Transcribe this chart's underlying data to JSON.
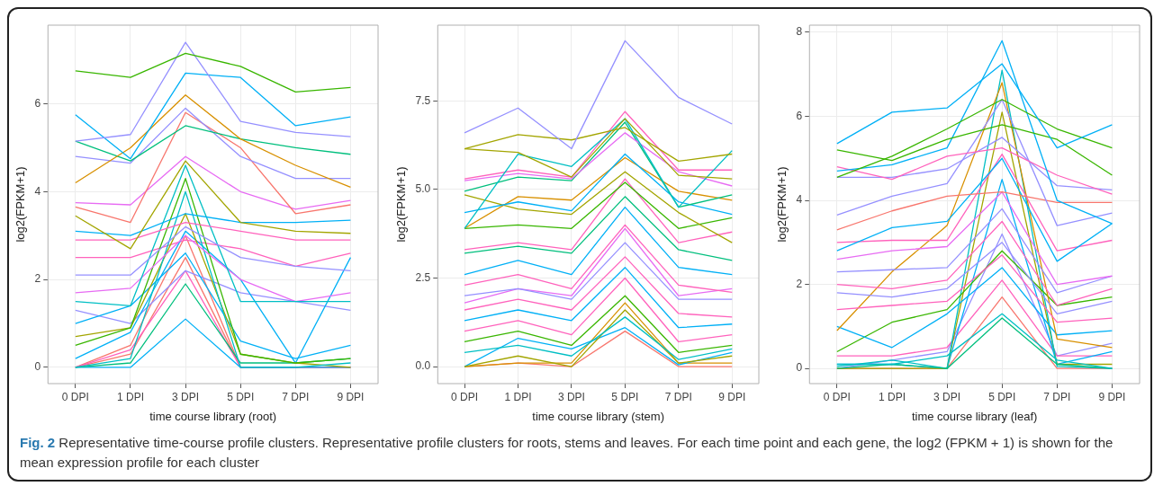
{
  "chart_data": [
    {
      "type": "line",
      "xlabel": "time course library (root)",
      "ylabel": "log2(FPKM+1)",
      "categories": [
        "0 DPI",
        "1 DPI",
        "3 DPI",
        "5 DPI",
        "7 DPI",
        "9 DPI"
      ],
      "ylim": [
        -0.37,
        7.79
      ],
      "yticks": [
        0,
        2,
        4,
        6
      ],
      "grid": true,
      "legend": false,
      "marker": "none",
      "line_style": "solid",
      "annotations": [
        "Fig. 2",
        "Representative time-course profile clusters. Representative profile clusters for roots, stems and leaves. For each time point and each gene, the log2 (FPKM + 1) is shown for the mean expression profile for each cluster"
      ],
      "series": [
        {
          "color": "#39B600",
          "values": [
            6.75,
            6.6,
            7.15,
            6.85,
            6.27,
            6.37
          ]
        },
        {
          "color": "#9590FF",
          "values": [
            5.15,
            5.3,
            7.4,
            5.6,
            5.35,
            5.25
          ]
        },
        {
          "color": "#00B0F6",
          "values": [
            5.75,
            4.75,
            6.7,
            6.6,
            5.5,
            5.7
          ]
        },
        {
          "color": "#D89000",
          "values": [
            4.2,
            5.0,
            6.2,
            5.2,
            4.6,
            4.1
          ]
        },
        {
          "color": "#00BF7D",
          "values": [
            5.15,
            4.7,
            5.5,
            5.2,
            5.0,
            4.85
          ]
        },
        {
          "color": "#9590FF",
          "values": [
            4.8,
            4.65,
            5.9,
            4.8,
            4.3,
            4.3
          ]
        },
        {
          "color": "#F8766D",
          "values": [
            3.65,
            3.3,
            5.8,
            5.0,
            3.5,
            3.7
          ]
        },
        {
          "color": "#E76BF3",
          "values": [
            3.75,
            3.7,
            4.8,
            4.0,
            3.6,
            3.8
          ]
        },
        {
          "color": "#A3A500",
          "values": [
            3.45,
            2.7,
            4.7,
            3.3,
            3.1,
            3.05
          ]
        },
        {
          "color": "#00B0F6",
          "values": [
            3.1,
            3.0,
            3.5,
            3.3,
            3.3,
            3.35
          ]
        },
        {
          "color": "#FF62BC",
          "values": [
            2.9,
            2.9,
            3.3,
            3.1,
            2.9,
            2.9
          ]
        },
        {
          "color": "#9590FF",
          "values": [
            2.1,
            2.1,
            3.2,
            2.5,
            2.3,
            2.2
          ]
        },
        {
          "color": "#00BFC4",
          "values": [
            1.5,
            1.4,
            4.6,
            1.5,
            1.5,
            1.5
          ]
        },
        {
          "color": "#E76BF3",
          "values": [
            1.7,
            1.8,
            3.0,
            2.0,
            1.5,
            1.7
          ]
        },
        {
          "color": "#39B600",
          "values": [
            0.5,
            0.9,
            4.3,
            0.3,
            0.1,
            0.2
          ]
        },
        {
          "color": "#00BFC4",
          "values": [
            0,
            0.2,
            4.0,
            0,
            0,
            0.1
          ]
        },
        {
          "color": "#A3A500",
          "values": [
            0.7,
            0.9,
            3.5,
            0.3,
            0.1,
            0
          ]
        },
        {
          "color": "#00B0F6",
          "values": [
            0.2,
            0.8,
            3.1,
            2.0,
            0.1,
            2.5
          ]
        },
        {
          "color": "#FF62BC",
          "values": [
            2.5,
            2.5,
            2.9,
            2.7,
            2.3,
            2.6
          ]
        },
        {
          "color": "#00B0F6",
          "values": [
            1.0,
            1.4,
            2.6,
            0.6,
            0.2,
            0.5
          ]
        },
        {
          "color": "#9590FF",
          "values": [
            1.3,
            1.0,
            2.2,
            1.7,
            1.5,
            1.3
          ]
        },
        {
          "color": "#00BF7D",
          "values": [
            0,
            0.1,
            1.9,
            0.1,
            0.1,
            0.2
          ]
        },
        {
          "color": "#00B0F6",
          "values": [
            0,
            0,
            1.1,
            0,
            0,
            0
          ]
        },
        {
          "color": "#FF62BC",
          "values": [
            0,
            0.4,
            2.2,
            0,
            0,
            0
          ]
        },
        {
          "color": "#F8766D",
          "values": [
            0,
            0.3,
            2.5,
            0,
            0,
            0
          ]
        },
        {
          "color": "#F8766D",
          "values": [
            0,
            0.5,
            3.0,
            0,
            0,
            0
          ]
        }
      ]
    },
    {
      "type": "line",
      "xlabel": "time course library (stem)",
      "ylabel": "log2(FPKM+1)",
      "categories": [
        "0 DPI",
        "1 DPI",
        "3 DPI",
        "5 DPI",
        "7 DPI",
        "9 DPI"
      ],
      "ylim": [
        -0.48,
        9.64
      ],
      "yticks": [
        {
          "value": 0,
          "label": "0.0"
        },
        {
          "value": 2.5,
          "label": "2.5"
        },
        {
          "value": 5,
          "label": "5.0"
        },
        {
          "value": 7.5,
          "label": "7.5"
        }
      ],
      "grid": true,
      "legend": false,
      "marker": "none",
      "line_style": "solid",
      "series": [
        {
          "color": "#9590FF",
          "values": [
            6.6,
            7.3,
            6.15,
            9.2,
            7.6,
            6.85
          ]
        },
        {
          "color": "#A3A500",
          "values": [
            6.15,
            6.55,
            6.4,
            6.75,
            5.8,
            6.0
          ]
        },
        {
          "color": "#A3A500",
          "values": [
            6.15,
            6.05,
            5.35,
            7.0,
            5.4,
            5.3
          ]
        },
        {
          "color": "#00BFC4",
          "values": [
            3.9,
            6.0,
            5.65,
            7.0,
            4.5,
            6.1
          ]
        },
        {
          "color": "#FF62BC",
          "values": [
            5.3,
            5.55,
            5.35,
            7.2,
            5.55,
            5.55
          ]
        },
        {
          "color": "#E76BF3",
          "values": [
            5.25,
            5.45,
            5.3,
            6.6,
            5.5,
            5.1
          ]
        },
        {
          "color": "#00BF7D",
          "values": [
            4.95,
            5.35,
            5.25,
            6.9,
            4.5,
            4.85
          ]
        },
        {
          "color": "#00B0F6",
          "values": [
            4.35,
            4.65,
            4.4,
            6.0,
            4.65,
            4.3
          ]
        },
        {
          "color": "#D89000",
          "values": [
            3.9,
            4.8,
            4.7,
            5.9,
            4.95,
            4.7
          ]
        },
        {
          "color": "#A3A500",
          "values": [
            4.85,
            4.45,
            4.3,
            5.5,
            4.35,
            3.5
          ]
        },
        {
          "color": "#39B600",
          "values": [
            3.9,
            4.0,
            3.9,
            5.2,
            3.9,
            4.2
          ]
        },
        {
          "color": "#00BF7D",
          "values": [
            3.2,
            3.4,
            3.2,
            4.8,
            3.3,
            3.0
          ]
        },
        {
          "color": "#FF62BC",
          "values": [
            3.3,
            3.5,
            3.3,
            5.3,
            3.5,
            3.8
          ]
        },
        {
          "color": "#00B0F6",
          "values": [
            2.6,
            3.0,
            2.6,
            4.5,
            2.8,
            2.6
          ]
        },
        {
          "color": "#FF62BC",
          "values": [
            2.3,
            2.6,
            2.2,
            4.0,
            2.3,
            2.1
          ]
        },
        {
          "color": "#9590FF",
          "values": [
            2.0,
            2.2,
            1.9,
            3.5,
            1.9,
            1.9
          ]
        },
        {
          "color": "#E76BF3",
          "values": [
            1.8,
            2.2,
            2.0,
            3.9,
            2.0,
            2.2
          ]
        },
        {
          "color": "#FF62BC",
          "values": [
            1.6,
            1.9,
            1.6,
            3.1,
            1.5,
            1.4
          ]
        },
        {
          "color": "#00B0F6",
          "values": [
            1.3,
            1.6,
            1.3,
            2.8,
            1.1,
            1.2
          ]
        },
        {
          "color": "#FF62BC",
          "values": [
            1.0,
            1.3,
            0.9,
            2.5,
            0.7,
            0.9
          ]
        },
        {
          "color": "#39B600",
          "values": [
            0.7,
            1.0,
            0.6,
            2.0,
            0.4,
            0.6
          ]
        },
        {
          "color": "#00BFC4",
          "values": [
            0.4,
            0.6,
            0.3,
            1.4,
            0.2,
            0.5
          ]
        },
        {
          "color": "#A3A500",
          "values": [
            0,
            0.3,
            0,
            1.6,
            0.1,
            0.3
          ]
        },
        {
          "color": "#00B0F6",
          "values": [
            0,
            0.8,
            0.5,
            1.1,
            0.05,
            0.4
          ]
        },
        {
          "color": "#D89000",
          "values": [
            0,
            0.1,
            0.1,
            1.8,
            0.1,
            0.1
          ]
        },
        {
          "color": "#F8766D",
          "values": [
            0,
            0.1,
            0,
            1.0,
            0,
            0
          ]
        }
      ]
    },
    {
      "type": "line",
      "xlabel": "time course library (leaf)",
      "ylabel": "log2(FPKM+1)",
      "categories": [
        "0 DPI",
        "1 DPI",
        "3 DPI",
        "5 DPI",
        "7 DPI",
        "9 DPI"
      ],
      "ylim": [
        -0.36,
        8.17
      ],
      "yticks": [
        0,
        2,
        4,
        6,
        8
      ],
      "grid": true,
      "legend": false,
      "marker": "none",
      "line_style": "solid",
      "series": [
        {
          "color": "#00B0F6",
          "values": [
            5.35,
            6.1,
            6.2,
            7.25,
            5.25,
            5.8
          ]
        },
        {
          "color": "#39B600",
          "values": [
            4.55,
            5.05,
            5.7,
            6.4,
            5.7,
            5.25
          ]
        },
        {
          "color": "#39B600",
          "values": [
            5.2,
            4.95,
            5.45,
            5.8,
            5.45,
            4.6
          ]
        },
        {
          "color": "#00B0F6",
          "values": [
            4.7,
            4.85,
            5.25,
            7.8,
            4.0,
            3.45
          ]
        },
        {
          "color": "#FF62BC",
          "values": [
            4.8,
            4.5,
            5.05,
            5.25,
            4.6,
            4.15
          ]
        },
        {
          "color": "#9590FF",
          "values": [
            4.55,
            4.55,
            4.75,
            5.5,
            4.35,
            4.25
          ]
        },
        {
          "color": "#9590FF",
          "values": [
            3.65,
            4.1,
            4.4,
            6.4,
            3.4,
            3.7
          ]
        },
        {
          "color": "#F8766D",
          "values": [
            3.3,
            3.75,
            4.1,
            4.2,
            3.95,
            3.95
          ]
        },
        {
          "color": "#00B0F6",
          "values": [
            2.8,
            3.35,
            3.5,
            5.0,
            2.55,
            3.45
          ]
        },
        {
          "color": "#FF62BC",
          "values": [
            3.0,
            3.05,
            3.05,
            5.1,
            2.8,
            3.05
          ]
        },
        {
          "color": "#E76BF3",
          "values": [
            2.6,
            2.8,
            2.9,
            4.2,
            2.0,
            2.2
          ]
        },
        {
          "color": "#9590FF",
          "values": [
            2.3,
            2.35,
            2.4,
            3.8,
            1.8,
            2.2
          ]
        },
        {
          "color": "#FF62BC",
          "values": [
            2.0,
            1.9,
            2.1,
            3.5,
            1.5,
            1.9
          ]
        },
        {
          "color": "#9590FF",
          "values": [
            1.8,
            1.7,
            1.9,
            3.0,
            1.3,
            1.6
          ]
        },
        {
          "color": "#FF62BC",
          "values": [
            1.4,
            1.5,
            1.6,
            2.7,
            1.1,
            1.2
          ]
        },
        {
          "color": "#D89000",
          "values": [
            0.9,
            2.3,
            3.4,
            6.8,
            0.7,
            0.5
          ]
        },
        {
          "color": "#00B0F6",
          "values": [
            1.0,
            0.5,
            1.3,
            2.4,
            0.8,
            0.9
          ]
        },
        {
          "color": "#39B600",
          "values": [
            0.4,
            1.1,
            1.4,
            2.8,
            1.5,
            1.7
          ]
        },
        {
          "color": "#00BFC4",
          "values": [
            0.1,
            0.1,
            0.3,
            1.3,
            0.2,
            0
          ]
        },
        {
          "color": "#00BF7D",
          "values": [
            0,
            0.1,
            0,
            1.2,
            0.1,
            0
          ]
        },
        {
          "color": "#00BFC4",
          "values": [
            0.05,
            0.2,
            0,
            7.1,
            0.05,
            0
          ]
        },
        {
          "color": "#A3A500",
          "values": [
            0,
            0,
            0,
            6.1,
            0.1,
            0.1
          ]
        },
        {
          "color": "#00B0F6",
          "values": [
            0.1,
            0.1,
            0,
            4.5,
            0.1,
            0.4
          ]
        },
        {
          "color": "#F8766D",
          "values": [
            0,
            0,
            0,
            1.7,
            0,
            0
          ]
        },
        {
          "color": "#FF62BC",
          "values": [
            0.3,
            0.3,
            0.5,
            2.1,
            0.3,
            0.3
          ]
        },
        {
          "color": "#9590FF",
          "values": [
            0,
            0.2,
            0.4,
            3.2,
            0.3,
            0.6
          ]
        }
      ]
    }
  ]
}
